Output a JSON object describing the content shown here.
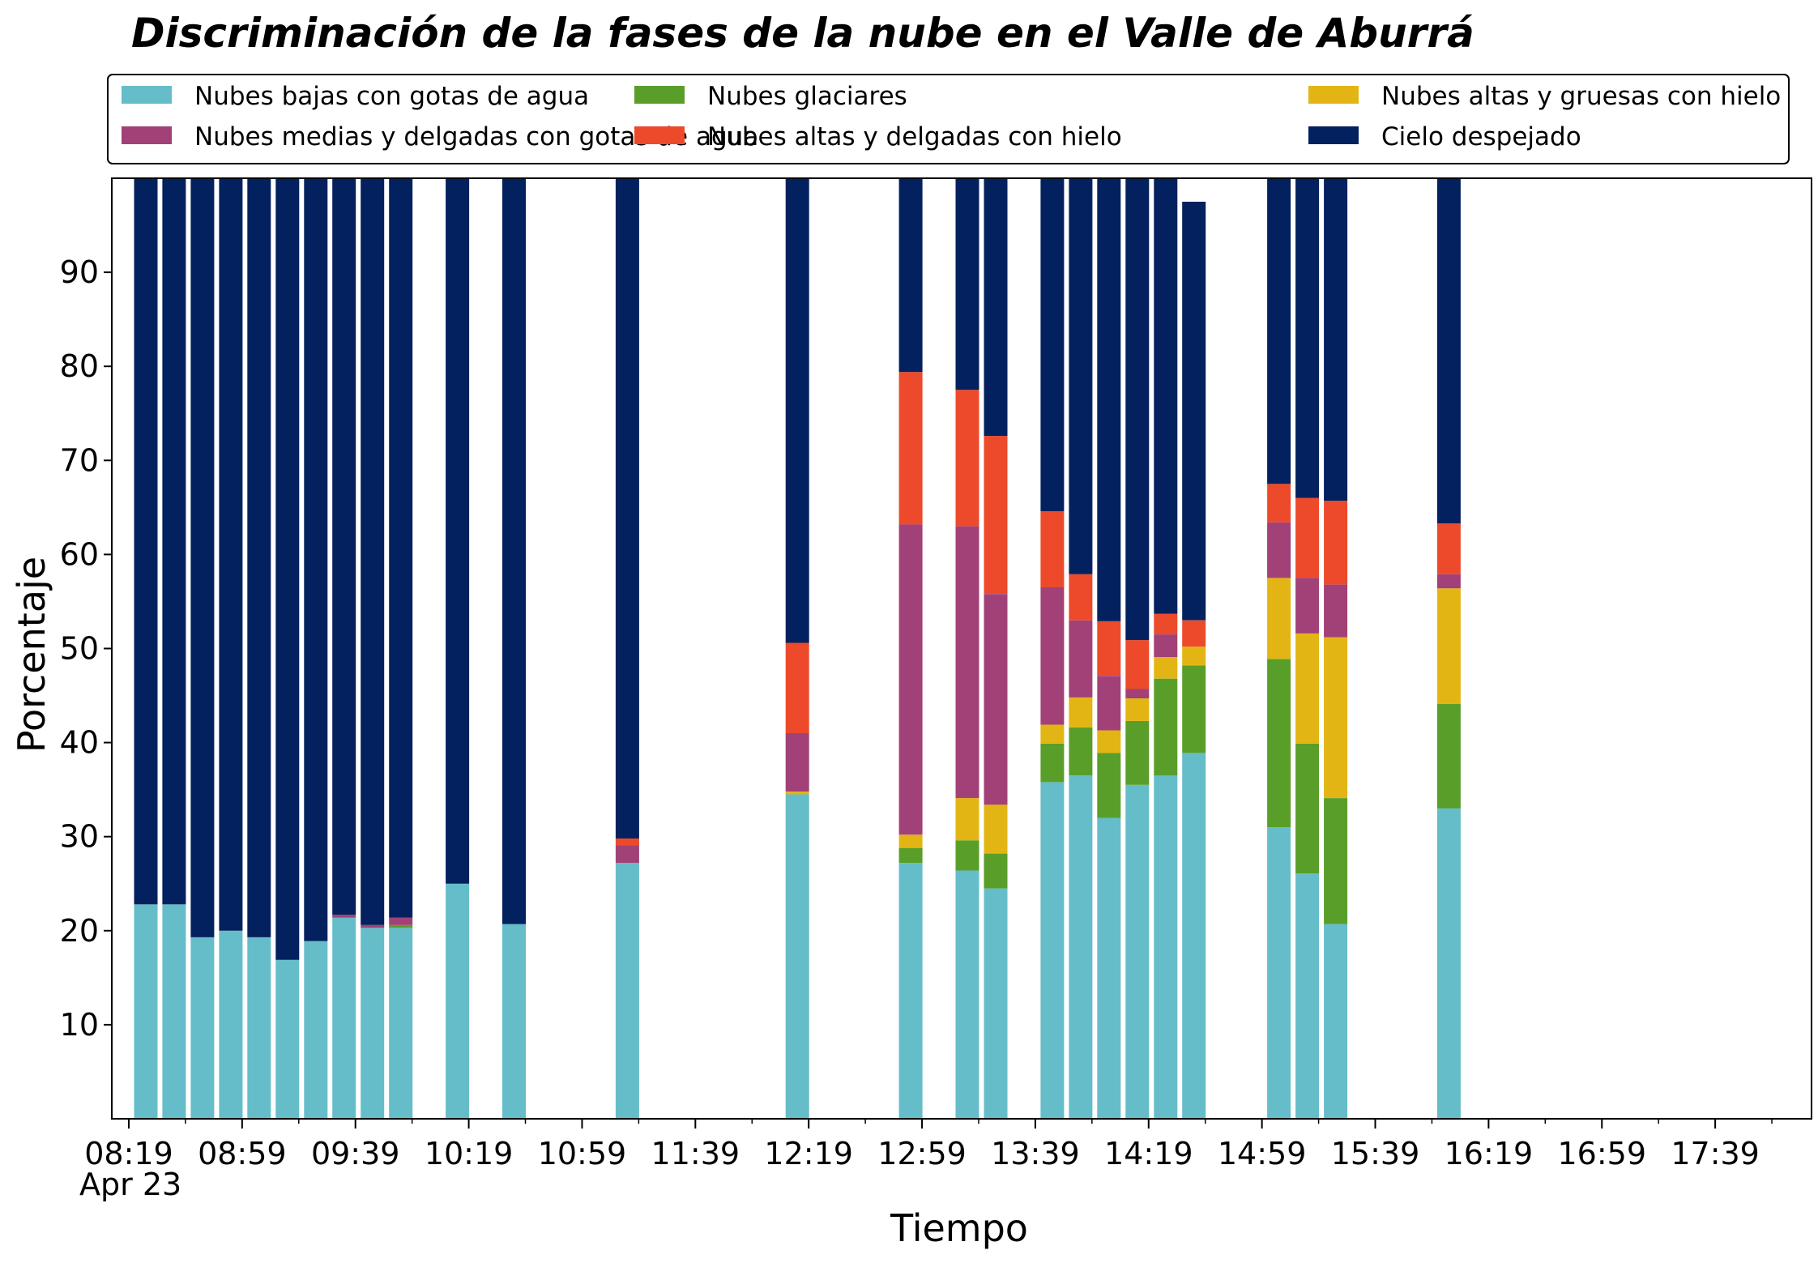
{
  "chart_data": {
    "type": "bar",
    "stacked": true,
    "title": "Discriminación de la fases de la nube en el Valle de Aburrá",
    "xlabel": "Tiempo",
    "ylabel": "Porcentaje",
    "ylim": [
      0,
      100
    ],
    "yticks": [
      10,
      20,
      30,
      40,
      50,
      60,
      70,
      80,
      90
    ],
    "xlim": [
      "08:13",
      "18:13"
    ],
    "xticks": [
      "08:19",
      "08:59",
      "09:39",
      "10:19",
      "10:59",
      "11:39",
      "12:19",
      "12:59",
      "13:39",
      "14:19",
      "14:59",
      "15:39",
      "16:19",
      "16:59",
      "17:39"
    ],
    "x_date_label": "Apr 23",
    "grid": false,
    "legend_position": "top",
    "x": [
      "08:25",
      "08:35",
      "08:45",
      "08:55",
      "09:05",
      "09:15",
      "09:25",
      "09:35",
      "09:45",
      "09:55",
      "10:15",
      "10:35",
      "11:15",
      "12:15",
      "12:55",
      "13:15",
      "13:25",
      "13:45",
      "13:55",
      "14:05",
      "14:15",
      "14:25",
      "14:35",
      "15:05",
      "15:15",
      "15:25",
      "16:05"
    ],
    "series": [
      {
        "name": "Nubes bajas con gotas de agua",
        "color": "#65BDC9",
        "values": [
          22.8,
          22.8,
          19.3,
          20,
          19.3,
          16.9,
          18.9,
          21.4,
          20.3,
          20.3,
          25,
          20.7,
          27.2,
          34.5,
          27.2,
          26.4,
          24.5,
          35.8,
          36.5,
          32,
          35.5,
          36.5,
          38.9,
          31,
          26.1,
          20.7,
          33
        ]
      },
      {
        "name": "Nubes glaciares",
        "color": "#5A9E2A",
        "values": [
          0,
          0,
          0,
          0,
          0,
          0,
          0,
          0,
          0,
          0.3,
          0,
          0,
          0,
          0,
          1.6,
          3.2,
          3.7,
          4.1,
          5.1,
          6.9,
          6.8,
          10.3,
          9.3,
          17.9,
          13.8,
          13.4,
          11.1
        ]
      },
      {
        "name": "Nubes altas y gruesas con hielo",
        "color": "#E3B514",
        "values": [
          0,
          0,
          0,
          0,
          0,
          0,
          0,
          0,
          0,
          0,
          0,
          0,
          0,
          0.3,
          1.4,
          4.5,
          5.2,
          2,
          3.2,
          2.4,
          2.4,
          2.3,
          2,
          8.6,
          11.7,
          17.1,
          12.3
        ]
      },
      {
        "name": "Nubes medias y delgadas con gotas de agua",
        "color": "#A24177",
        "values": [
          0,
          0,
          0,
          0,
          0,
          0,
          0,
          0.3,
          0.3,
          0.8,
          0,
          0,
          1.9,
          6.2,
          33,
          28.9,
          22.4,
          14.6,
          8.2,
          5.8,
          1,
          2.4,
          0,
          5.9,
          5.9,
          5.6,
          1.5
        ]
      },
      {
        "name": "Nubes altas y delgadas con hielo",
        "color": "#EC4A2B",
        "values": [
          0,
          0,
          0,
          0,
          0,
          0,
          0,
          0,
          0,
          0,
          0,
          0,
          0.7,
          9.6,
          16.2,
          14.5,
          16.8,
          8.1,
          4.9,
          5.8,
          5.2,
          2.2,
          2.8,
          4.1,
          8.5,
          8.9,
          5.4
        ]
      },
      {
        "name": "Cielo despejado",
        "color": "#03215E",
        "values": [
          77.2,
          77.2,
          80.7,
          80,
          80.7,
          83.1,
          81.1,
          78.3,
          79.4,
          78.6,
          75,
          79.3,
          70.2,
          49.4,
          20.6,
          22.5,
          27.4,
          35.4,
          42.1,
          47.1,
          49.1,
          46.3,
          44.5,
          32.5,
          34,
          34.3,
          36.7
        ]
      }
    ]
  }
}
